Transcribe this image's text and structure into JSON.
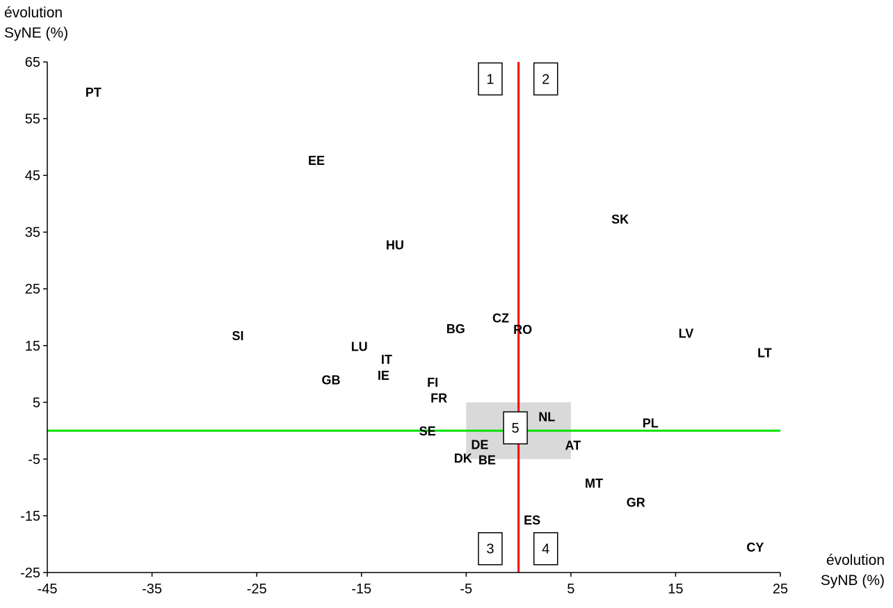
{
  "chart_data": {
    "type": "scatter",
    "title": "",
    "xlabel": [
      "évolution",
      "SyNB (%)"
    ],
    "ylabel": [
      "évolution",
      "SyNE (%)"
    ],
    "xlim": [
      -45,
      25
    ],
    "ylim": [
      -25,
      65
    ],
    "xticks": [
      -45,
      -35,
      -25,
      -15,
      -5,
      5,
      15,
      25
    ],
    "yticks": [
      65,
      55,
      45,
      35,
      25,
      15,
      5,
      -5,
      -15,
      -25
    ],
    "xtick_labels": [
      "-45",
      "-35",
      "-25",
      "-15",
      "-5",
      "5",
      "15",
      "25"
    ],
    "ytick_labels": [
      "65",
      "55",
      "45",
      "35",
      "25",
      "15",
      "5",
      "-5",
      "-15",
      "-25"
    ],
    "grid": false,
    "legend": "none",
    "reference_lines": {
      "vertical": {
        "x": 0,
        "color": "#ff0000"
      },
      "horizontal": {
        "y": 0,
        "color": "#00e000"
      }
    },
    "shaded_region": {
      "x": [
        -5,
        5
      ],
      "y": [
        -5,
        5
      ],
      "color": "#d9d9d9"
    },
    "points": [
      {
        "label": "PT",
        "x": -40.6,
        "y": 59.6
      },
      {
        "label": "EE",
        "x": -19.3,
        "y": 47.6
      },
      {
        "label": "SK",
        "x": 9.7,
        "y": 37.2
      },
      {
        "label": "HU",
        "x": -11.8,
        "y": 32.7
      },
      {
        "label": "CZ",
        "x": -1.7,
        "y": 19.8
      },
      {
        "label": "RO",
        "x": 0.4,
        "y": 17.8
      },
      {
        "label": "BG",
        "x": -6.0,
        "y": 17.9
      },
      {
        "label": "LV",
        "x": 16.0,
        "y": 17.1
      },
      {
        "label": "SI",
        "x": -26.8,
        "y": 16.7
      },
      {
        "label": "LU",
        "x": -15.2,
        "y": 14.8
      },
      {
        "label": "LT",
        "x": 23.5,
        "y": 13.7
      },
      {
        "label": "IT",
        "x": -12.6,
        "y": 12.5
      },
      {
        "label": "IE",
        "x": -12.9,
        "y": 9.7
      },
      {
        "label": "GB",
        "x": -17.9,
        "y": 8.9
      },
      {
        "label": "FI",
        "x": -8.2,
        "y": 8.5
      },
      {
        "label": "FR",
        "x": -7.6,
        "y": 5.7
      },
      {
        "label": "NL",
        "x": 2.7,
        "y": 2.4
      },
      {
        "label": "PL",
        "x": 12.6,
        "y": 1.3
      },
      {
        "label": "SE",
        "x": -8.7,
        "y": -0.1
      },
      {
        "label": "DE",
        "x": -3.7,
        "y": -2.5
      },
      {
        "label": "AT",
        "x": 5.2,
        "y": -2.6
      },
      {
        "label": "DK",
        "x": -5.3,
        "y": -4.9
      },
      {
        "label": "BE",
        "x": -3.0,
        "y": -5.2
      },
      {
        "label": "MT",
        "x": 7.2,
        "y": -9.3
      },
      {
        "label": "GR",
        "x": 11.2,
        "y": -12.7
      },
      {
        "label": "ES",
        "x": 1.3,
        "y": -15.8
      },
      {
        "label": "CY",
        "x": 22.6,
        "y": -20.6
      }
    ],
    "quadrant_labels": [
      {
        "label": "1",
        "x": -2.7,
        "y": 62
      },
      {
        "label": "2",
        "x": 2.6,
        "y": 62
      },
      {
        "label": "3",
        "x": -2.7,
        "y": -20.8
      },
      {
        "label": "4",
        "x": 2.6,
        "y": -20.8
      },
      {
        "label": "5",
        "x": -0.3,
        "y": 0.5
      }
    ]
  }
}
